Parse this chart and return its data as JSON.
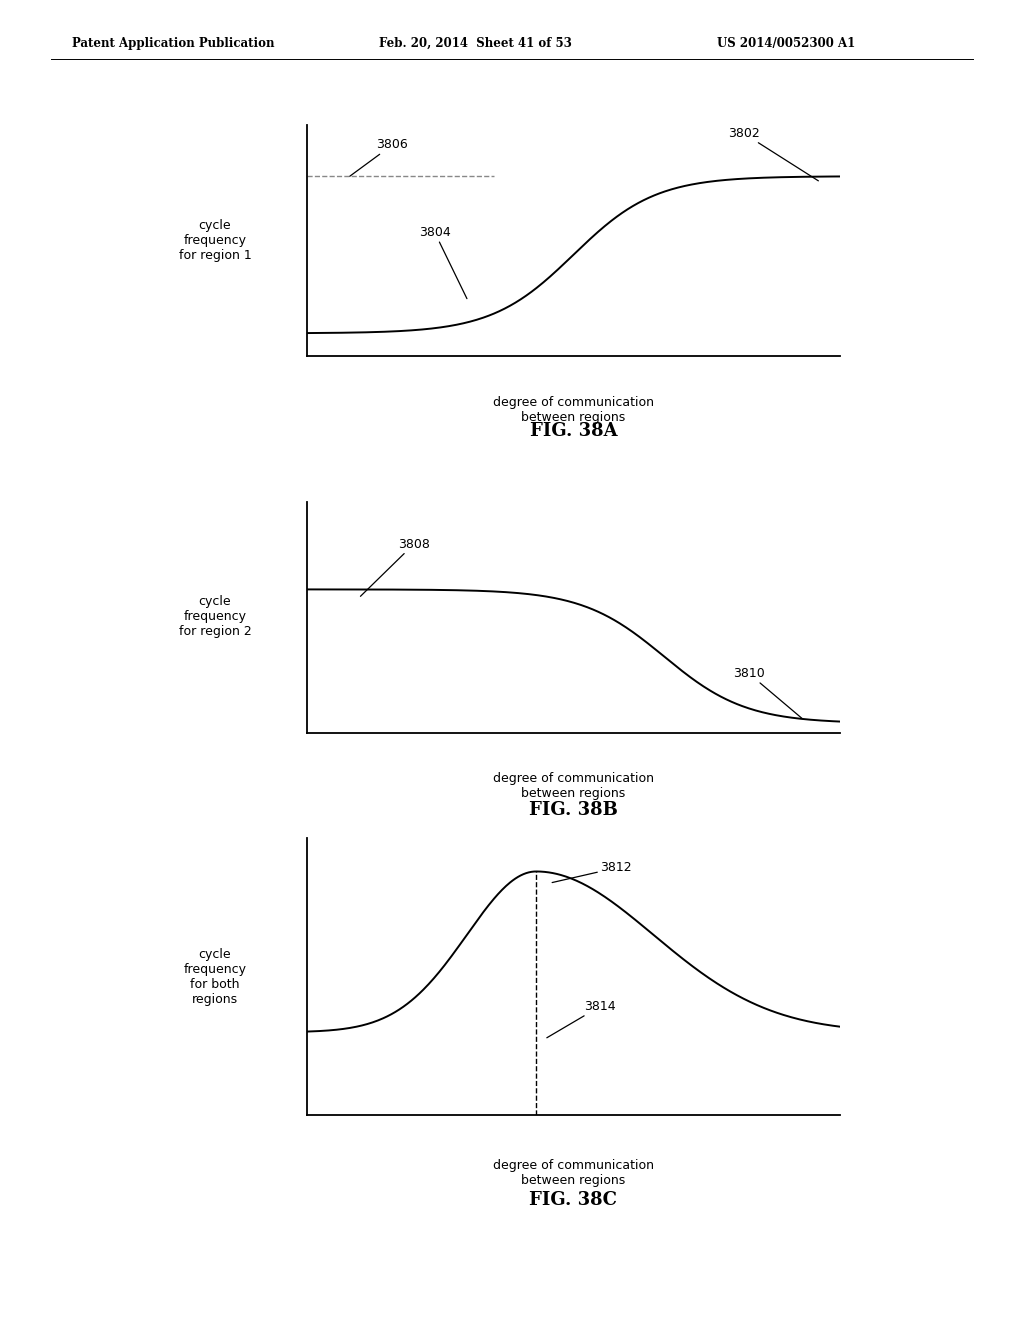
{
  "header_left": "Patent Application Publication",
  "header_mid": "Feb. 20, 2014  Sheet 41 of 53",
  "header_right": "US 2014/0052300 A1",
  "fig38A": {
    "ylabel": "cycle\nfrequency\nfor region 1",
    "xlabel": "degree of communication\nbetween regions",
    "caption": "FIG. 38A",
    "label_curve": "3802",
    "label_dashed": "3806",
    "label_sigmoid": "3804"
  },
  "fig38B": {
    "ylabel": "cycle\nfrequency\nfor region 2",
    "xlabel": "degree of communication\nbetween regions",
    "caption": "FIG. 38B",
    "label_high": "3808",
    "label_low": "3810"
  },
  "fig38C": {
    "ylabel": "cycle\nfrequency\nfor both\nregions",
    "xlabel": "degree of communication\nbetween regions",
    "caption": "FIG. 38C",
    "label_peak": "3812",
    "label_dashed": "3814"
  },
  "bg_color": "#ffffff",
  "line_color": "#000000",
  "dashed_color": "#888888"
}
